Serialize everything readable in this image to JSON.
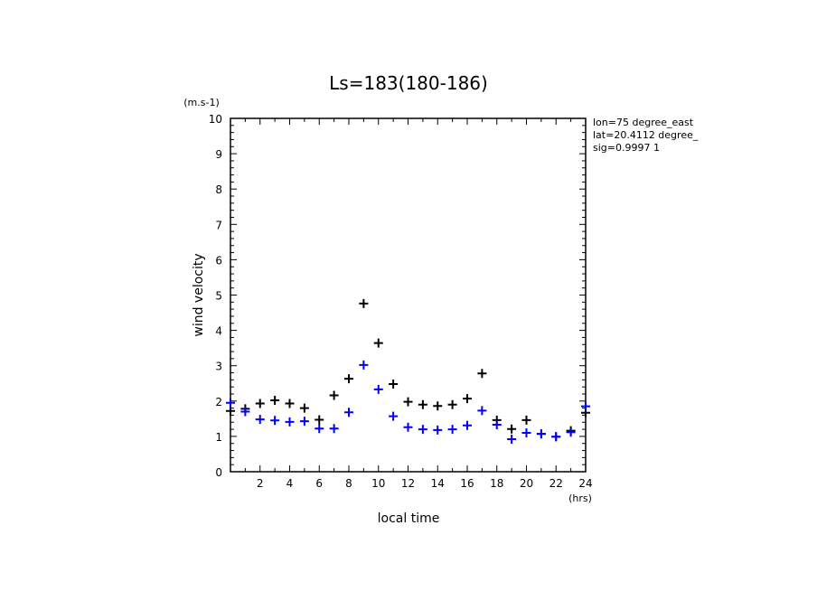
{
  "chart_data": {
    "type": "scatter",
    "title": "Ls=183(180-186)",
    "xlabel": "local time",
    "ylabel": "wind velocity",
    "x_unit": "(hrs)",
    "y_unit": "(m.s-1)",
    "xlim": [
      0,
      24
    ],
    "ylim": [
      0,
      10
    ],
    "x_ticks": [
      2,
      4,
      6,
      8,
      10,
      12,
      14,
      16,
      18,
      20,
      22,
      24
    ],
    "y_ticks": [
      0,
      1,
      2,
      3,
      4,
      5,
      6,
      7,
      8,
      9,
      10
    ],
    "grid": false,
    "annotations": [
      "lon=75 degree_east",
      "lat=20.4112 degree_",
      "sig=0.9997 1"
    ],
    "series": [
      {
        "color": "#000000",
        "marker": "plus",
        "x": [
          0,
          1,
          2,
          3,
          4,
          5,
          6,
          7,
          8,
          9,
          10,
          11,
          12,
          13,
          14,
          15,
          16,
          17,
          18,
          19,
          20,
          21,
          22,
          23,
          24
        ],
        "y": [
          1.72,
          1.78,
          1.93,
          2.02,
          1.93,
          1.8,
          1.47,
          2.16,
          2.63,
          4.76,
          3.64,
          2.48,
          1.98,
          1.9,
          1.86,
          1.9,
          2.07,
          2.78,
          1.46,
          1.21,
          1.46,
          1.07,
          0.99,
          1.16,
          1.67
        ]
      },
      {
        "color": "#0000ff",
        "marker": "plus",
        "x": [
          0,
          1,
          2,
          3,
          4,
          5,
          6,
          7,
          8,
          9,
          10,
          11,
          12,
          13,
          14,
          15,
          16,
          17,
          18,
          19,
          20,
          21,
          22,
          23,
          24
        ],
        "y": [
          1.95,
          1.7,
          1.48,
          1.45,
          1.41,
          1.43,
          1.22,
          1.22,
          1.68,
          3.02,
          2.33,
          1.57,
          1.26,
          1.2,
          1.18,
          1.2,
          1.31,
          1.73,
          1.33,
          0.92,
          1.1,
          1.07,
          0.99,
          1.12,
          1.85
        ]
      }
    ]
  }
}
